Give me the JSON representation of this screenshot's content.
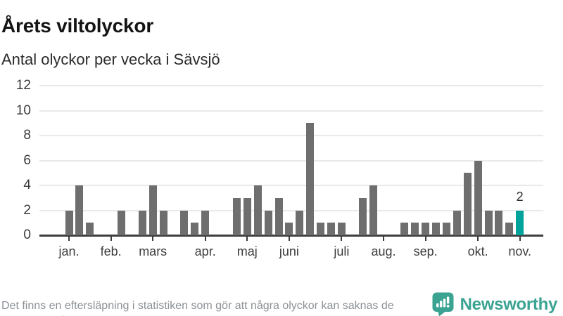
{
  "header": {
    "title": "Årets viltolyckor",
    "subtitle": "Antal olyckor per vecka i Sävsjö"
  },
  "chart_data": {
    "type": "bar",
    "title": "Årets viltolyckor",
    "subtitle": "Antal olyckor per vecka i Sävsjö",
    "x_unit": "vecka",
    "categories": [
      "v1",
      "v2",
      "v3",
      "v4",
      "v5",
      "v6",
      "v7",
      "v8",
      "v9",
      "v10",
      "v11",
      "v12",
      "v13",
      "v14",
      "v15",
      "v16",
      "v17",
      "v18",
      "v19",
      "v20",
      "v21",
      "v22",
      "v23",
      "v24",
      "v25",
      "v26",
      "v27",
      "v28",
      "v29",
      "v30",
      "v31",
      "v32",
      "v33",
      "v34",
      "v35",
      "v36",
      "v37",
      "v38",
      "v39",
      "v40",
      "v41",
      "v42",
      "v43",
      "v44"
    ],
    "values": [
      2,
      4,
      1,
      0,
      0,
      2,
      0,
      2,
      4,
      2,
      0,
      2,
      1,
      2,
      0,
      0,
      3,
      3,
      4,
      2,
      3,
      1,
      2,
      9,
      1,
      1,
      1,
      0,
      3,
      4,
      0,
      0,
      1,
      1,
      1,
      1,
      1,
      2,
      5,
      6,
      2,
      2,
      1,
      2
    ],
    "x_tick_weeks": [
      1,
      5,
      9,
      14,
      18,
      22,
      27,
      31,
      35,
      40,
      44
    ],
    "x_tick_labels": [
      "jan.",
      "feb.",
      "mars",
      "apr.",
      "maj",
      "juni",
      "juli",
      "aug.",
      "sep.",
      "okt.",
      "nov."
    ],
    "y_ticks": [
      0,
      2,
      4,
      6,
      8,
      10,
      12
    ],
    "ylim": [
      0,
      12
    ],
    "grid": true,
    "legend": "none",
    "highlight_last_bar": true,
    "annotation": {
      "week": 44,
      "label": "2"
    },
    "colors": {
      "bar": "#6e6e6e",
      "highlight": "#00a39b",
      "axis": "#3d3d3d",
      "gridline": "#e9e9e9",
      "tick_text": "#3c3c3c"
    }
  },
  "footer": {
    "note": "Det finns en eftersläpning i statistiken som gör att några olyckor kan saknas de senaste veckorna.",
    "logo_text": "Newsworthy",
    "logo_color": "#3aa392"
  }
}
